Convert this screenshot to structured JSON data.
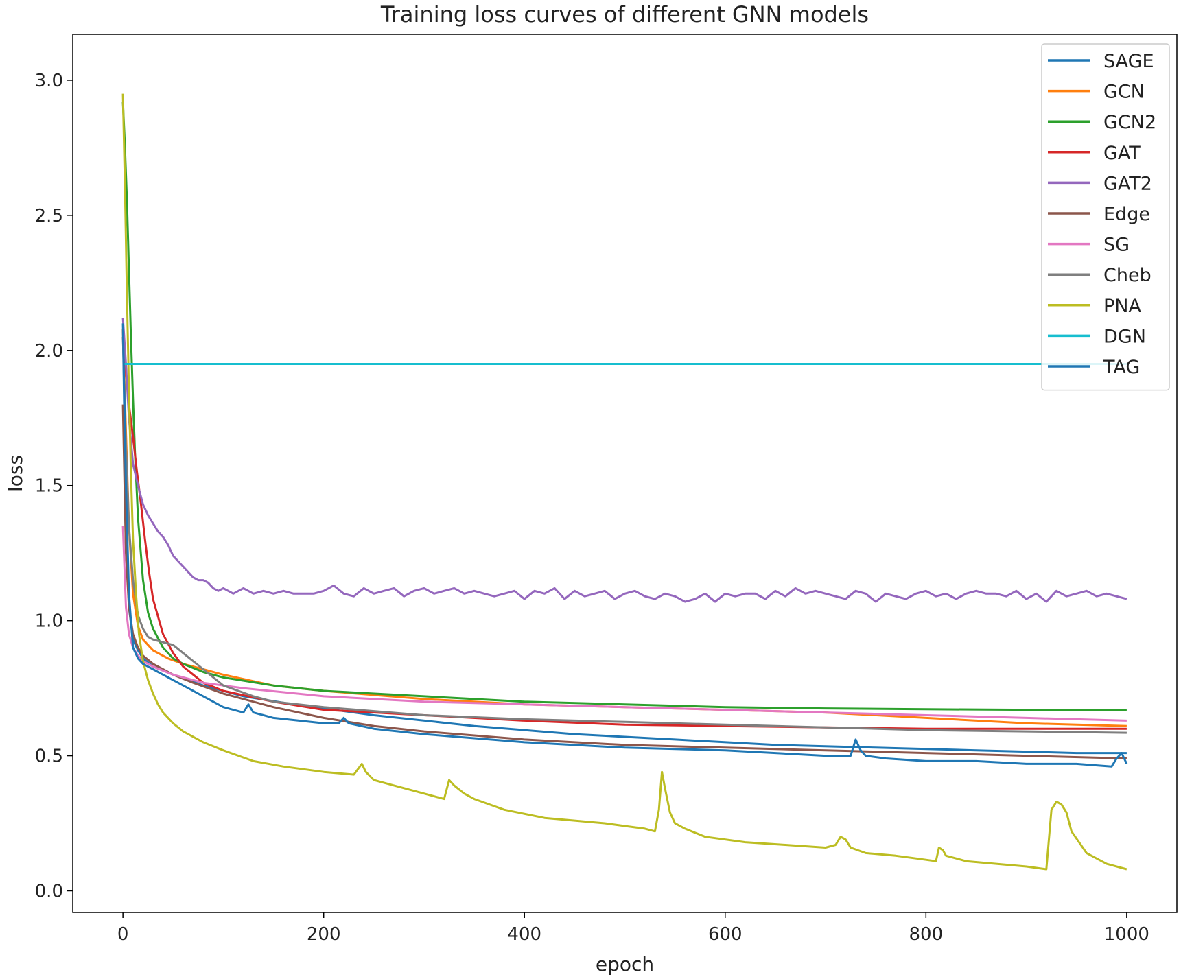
{
  "chart_data": {
    "type": "line",
    "title": "Training loss curves of different GNN models",
    "xlabel": "epoch",
    "ylabel": "loss",
    "xlim": [
      -50,
      1050
    ],
    "ylim": [
      -0.08,
      3.17
    ],
    "xticks": [
      0,
      200,
      400,
      600,
      800,
      1000
    ],
    "yticks": [
      0.0,
      0.5,
      1.0,
      1.5,
      2.0,
      2.5,
      3.0
    ],
    "xtick_labels": [
      "0",
      "200",
      "400",
      "600",
      "800",
      "1000"
    ],
    "ytick_labels": [
      "0.0",
      "0.5",
      "1.0",
      "1.5",
      "2.0",
      "2.5",
      "3.0"
    ],
    "grid": false,
    "legend_position": "top-right",
    "series": [
      {
        "name": "SAGE",
        "color": "#1f77b4",
        "x": [
          0,
          3,
          6,
          10,
          15,
          20,
          30,
          50,
          80,
          120,
          170,
          250,
          350,
          450,
          550,
          650,
          750,
          850,
          950,
          1000
        ],
        "y": [
          2.08,
          1.4,
          1.05,
          0.93,
          0.89,
          0.86,
          0.83,
          0.8,
          0.76,
          0.72,
          0.69,
          0.65,
          0.61,
          0.58,
          0.56,
          0.54,
          0.53,
          0.52,
          0.51,
          0.51
        ]
      },
      {
        "name": "GCN",
        "color": "#ff7f0e",
        "x": [
          0,
          3,
          6,
          10,
          15,
          20,
          30,
          45,
          60,
          80,
          100,
          150,
          200,
          300,
          400,
          500,
          600,
          700,
          800,
          900,
          1000
        ],
        "y": [
          2.08,
          1.7,
          1.35,
          1.1,
          0.98,
          0.93,
          0.89,
          0.86,
          0.84,
          0.82,
          0.8,
          0.76,
          0.74,
          0.71,
          0.69,
          0.68,
          0.67,
          0.66,
          0.64,
          0.62,
          0.61
        ]
      },
      {
        "name": "GCN2",
        "color": "#2ca02c",
        "x": [
          0,
          2,
          4,
          6,
          8,
          10,
          12,
          15,
          20,
          25,
          30,
          40,
          50,
          60,
          80,
          100,
          150,
          200,
          300,
          400,
          500,
          600,
          700,
          800,
          900,
          1000
        ],
        "y": [
          2.92,
          2.75,
          2.55,
          2.3,
          2.05,
          1.82,
          1.62,
          1.38,
          1.15,
          1.03,
          0.97,
          0.9,
          0.86,
          0.84,
          0.81,
          0.79,
          0.76,
          0.74,
          0.72,
          0.7,
          0.69,
          0.68,
          0.675,
          0.672,
          0.67,
          0.67
        ]
      },
      {
        "name": "GAT",
        "color": "#d62728",
        "x": [
          0,
          3,
          6,
          10,
          14,
          18,
          22,
          26,
          30,
          40,
          50,
          60,
          80,
          100,
          150,
          200,
          300,
          400,
          500,
          600,
          700,
          800,
          900,
          1000
        ],
        "y": [
          2.05,
          1.92,
          1.8,
          1.68,
          1.55,
          1.43,
          1.3,
          1.18,
          1.08,
          0.95,
          0.88,
          0.83,
          0.77,
          0.74,
          0.7,
          0.67,
          0.65,
          0.63,
          0.615,
          0.61,
          0.605,
          0.6,
          0.6,
          0.6
        ]
      },
      {
        "name": "GAT2",
        "color": "#9467bd",
        "x": [
          0,
          3,
          6,
          10,
          15,
          20,
          25,
          30,
          35,
          40,
          45,
          50,
          55,
          60,
          65,
          70,
          75,
          80,
          85,
          90,
          95,
          100,
          110,
          120,
          130,
          140,
          150,
          160,
          170,
          180,
          190,
          200,
          210,
          220,
          230,
          240,
          250,
          260,
          270,
          280,
          290,
          300,
          310,
          320,
          330,
          340,
          350,
          360,
          370,
          380,
          390,
          400,
          410,
          420,
          430,
          440,
          450,
          460,
          470,
          480,
          490,
          500,
          510,
          520,
          530,
          540,
          550,
          560,
          570,
          580,
          590,
          600,
          610,
          620,
          630,
          640,
          650,
          660,
          670,
          680,
          690,
          700,
          710,
          720,
          730,
          740,
          750,
          760,
          770,
          780,
          790,
          800,
          810,
          820,
          830,
          840,
          850,
          860,
          870,
          880,
          890,
          900,
          910,
          920,
          930,
          940,
          950,
          960,
          970,
          980,
          990,
          1000
        ],
        "y": [
          2.12,
          1.95,
          1.75,
          1.58,
          1.5,
          1.43,
          1.39,
          1.36,
          1.33,
          1.31,
          1.28,
          1.24,
          1.22,
          1.2,
          1.18,
          1.16,
          1.15,
          1.15,
          1.14,
          1.12,
          1.11,
          1.12,
          1.1,
          1.12,
          1.1,
          1.11,
          1.1,
          1.11,
          1.1,
          1.1,
          1.1,
          1.11,
          1.13,
          1.1,
          1.09,
          1.12,
          1.1,
          1.11,
          1.12,
          1.09,
          1.11,
          1.12,
          1.1,
          1.11,
          1.12,
          1.1,
          1.11,
          1.1,
          1.09,
          1.1,
          1.11,
          1.08,
          1.11,
          1.1,
          1.12,
          1.08,
          1.11,
          1.09,
          1.1,
          1.11,
          1.08,
          1.1,
          1.11,
          1.09,
          1.08,
          1.1,
          1.09,
          1.07,
          1.08,
          1.1,
          1.07,
          1.1,
          1.09,
          1.1,
          1.1,
          1.08,
          1.11,
          1.09,
          1.12,
          1.1,
          1.11,
          1.1,
          1.09,
          1.08,
          1.11,
          1.1,
          1.07,
          1.1,
          1.09,
          1.08,
          1.1,
          1.11,
          1.09,
          1.1,
          1.08,
          1.1,
          1.11,
          1.1,
          1.1,
          1.09,
          1.11,
          1.08,
          1.1,
          1.07,
          1.11,
          1.09,
          1.1,
          1.11,
          1.09,
          1.1,
          1.09,
          1.08
        ]
      },
      {
        "name": "Edge",
        "color": "#8c564b",
        "x": [
          0,
          3,
          6,
          10,
          15,
          20,
          30,
          40,
          50,
          70,
          100,
          150,
          200,
          250,
          300,
          400,
          500,
          600,
          700,
          800,
          900,
          1000
        ],
        "y": [
          1.8,
          1.25,
          1.05,
          0.95,
          0.9,
          0.87,
          0.84,
          0.82,
          0.8,
          0.77,
          0.73,
          0.68,
          0.64,
          0.61,
          0.59,
          0.56,
          0.54,
          0.53,
          0.52,
          0.51,
          0.5,
          0.49
        ]
      },
      {
        "name": "SG",
        "color": "#e377c2",
        "x": [
          0,
          3,
          6,
          10,
          15,
          20,
          30,
          50,
          80,
          120,
          200,
          300,
          400,
          500,
          600,
          700,
          800,
          900,
          1000
        ],
        "y": [
          1.35,
          1.05,
          0.95,
          0.9,
          0.87,
          0.85,
          0.83,
          0.8,
          0.77,
          0.75,
          0.72,
          0.7,
          0.69,
          0.68,
          0.67,
          0.66,
          0.65,
          0.64,
          0.63
        ]
      },
      {
        "name": "Cheb",
        "color": "#7f7f7f",
        "x": [
          0,
          3,
          6,
          10,
          15,
          20,
          25,
          30,
          40,
          50,
          60,
          70,
          80,
          100,
          130,
          150,
          200,
          300,
          400,
          500,
          600,
          700,
          800,
          900,
          1000
        ],
        "y": [
          2.05,
          1.65,
          1.35,
          1.15,
          1.02,
          0.97,
          0.94,
          0.93,
          0.92,
          0.91,
          0.88,
          0.85,
          0.82,
          0.76,
          0.72,
          0.7,
          0.68,
          0.65,
          0.635,
          0.625,
          0.615,
          0.605,
          0.595,
          0.59,
          0.585
        ]
      },
      {
        "name": "PNA",
        "color": "#bcbd22",
        "x": [
          0,
          2,
          4,
          6,
          8,
          10,
          13,
          16,
          20,
          25,
          30,
          35,
          40,
          50,
          60,
          80,
          100,
          130,
          160,
          200,
          230,
          238,
          242,
          250,
          270,
          300,
          320,
          325,
          330,
          340,
          350,
          380,
          420,
          450,
          480,
          500,
          520,
          530,
          534,
          537,
          540,
          545,
          550,
          560,
          580,
          620,
          660,
          700,
          710,
          715,
          720,
          725,
          740,
          770,
          790,
          810,
          813,
          817,
          820,
          830,
          840,
          870,
          900,
          920,
          925,
          930,
          935,
          940,
          945,
          960,
          980,
          1000
        ],
        "y": [
          2.95,
          2.6,
          2.2,
          1.85,
          1.55,
          1.3,
          1.1,
          0.95,
          0.85,
          0.78,
          0.73,
          0.69,
          0.66,
          0.62,
          0.59,
          0.55,
          0.52,
          0.48,
          0.46,
          0.44,
          0.43,
          0.47,
          0.44,
          0.41,
          0.39,
          0.36,
          0.34,
          0.41,
          0.39,
          0.36,
          0.34,
          0.3,
          0.27,
          0.26,
          0.25,
          0.24,
          0.23,
          0.22,
          0.3,
          0.44,
          0.38,
          0.29,
          0.25,
          0.23,
          0.2,
          0.18,
          0.17,
          0.16,
          0.17,
          0.2,
          0.19,
          0.16,
          0.14,
          0.13,
          0.12,
          0.11,
          0.16,
          0.15,
          0.13,
          0.12,
          0.11,
          0.1,
          0.09,
          0.08,
          0.3,
          0.33,
          0.32,
          0.29,
          0.22,
          0.14,
          0.1,
          0.08
        ]
      },
      {
        "name": "DGN",
        "color": "#17becf",
        "x": [
          0,
          1000
        ],
        "y": [
          1.95,
          1.95
        ]
      },
      {
        "name": "TAG",
        "color": "#1f77b4",
        "x": [
          0,
          3,
          6,
          10,
          15,
          20,
          30,
          50,
          80,
          100,
          120,
          125,
          130,
          150,
          200,
          215,
          220,
          225,
          250,
          300,
          400,
          500,
          600,
          700,
          725,
          730,
          735,
          740,
          760,
          800,
          850,
          900,
          950,
          985,
          990,
          995,
          1000
        ],
        "y": [
          2.1,
          1.5,
          1.1,
          0.9,
          0.86,
          0.84,
          0.82,
          0.78,
          0.72,
          0.68,
          0.66,
          0.69,
          0.66,
          0.64,
          0.62,
          0.62,
          0.64,
          0.62,
          0.6,
          0.58,
          0.55,
          0.53,
          0.52,
          0.5,
          0.5,
          0.56,
          0.52,
          0.5,
          0.49,
          0.48,
          0.48,
          0.47,
          0.47,
          0.46,
          0.49,
          0.51,
          0.47
        ]
      }
    ]
  }
}
